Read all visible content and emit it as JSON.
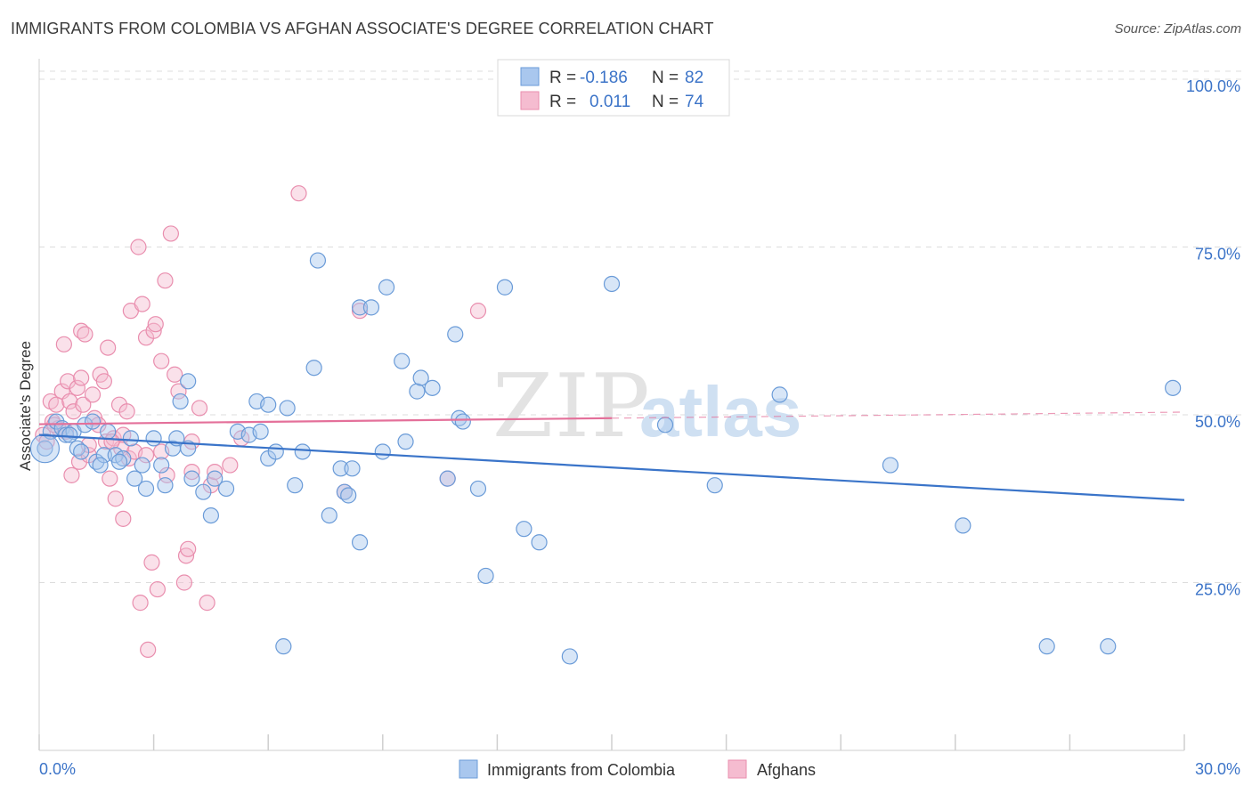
{
  "title": "IMMIGRANTS FROM COLOMBIA VS AFGHAN ASSOCIATE'S DEGREE CORRELATION CHART",
  "source": "Source: ZipAtlas.com",
  "watermark": {
    "zip": "ZIP",
    "atlas": "atlas"
  },
  "legend": {
    "rows": [
      {
        "r_label": "R =",
        "r_value": "-0.186",
        "n_label": "N =",
        "n_value": "82"
      },
      {
        "r_label": "R =",
        "r_value": "0.011",
        "n_label": "N =",
        "n_value": "74"
      }
    ]
  },
  "colors": {
    "blue_fill": "#a9c7ee",
    "blue_stroke": "#6a9bd8",
    "blue_line": "#3a74c9",
    "pink_fill": "#f5bcd0",
    "pink_stroke": "#e98eae",
    "pink_line": "#e4709a",
    "grid": "#dcdcdc",
    "tick_label": "#3c74c8"
  },
  "chart_data": {
    "type": "scatter",
    "title": "IMMIGRANTS FROM COLOMBIA VS AFGHAN ASSOCIATE'S DEGREE CORRELATION CHART",
    "xlabel": "",
    "ylabel": "Associate's Degree",
    "xlim": [
      0,
      30
    ],
    "ylim": [
      0,
      100
    ],
    "x_tick_labels": [
      "0.0%",
      "30.0%"
    ],
    "y_ticks": [
      25,
      50,
      75,
      100
    ],
    "y_tick_labels": [
      "25.0%",
      "50.0%",
      "75.0%",
      "100.0%"
    ],
    "grid": true,
    "legend_position": "bottom-center",
    "series": [
      {
        "name": "Immigrants from Colombia",
        "color": "#a9c7ee",
        "trend": {
          "x": [
            0,
            30
          ],
          "y": [
            47.0,
            37.3
          ]
        },
        "points": [
          [
            0.15,
            45.0
          ],
          [
            0.3,
            47.5
          ],
          [
            0.45,
            49.0
          ],
          [
            0.6,
            48.0
          ],
          [
            0.7,
            47.0
          ],
          [
            0.9,
            47.5
          ],
          [
            1.0,
            45.0
          ],
          [
            1.1,
            44.5
          ],
          [
            1.2,
            48.5
          ],
          [
            1.4,
            49.0
          ],
          [
            1.5,
            43.0
          ],
          [
            1.7,
            44.0
          ],
          [
            1.8,
            47.5
          ],
          [
            2.0,
            44.0
          ],
          [
            2.2,
            43.5
          ],
          [
            2.4,
            46.5
          ],
          [
            2.5,
            40.5
          ],
          [
            2.7,
            42.5
          ],
          [
            2.8,
            39.0
          ],
          [
            3.0,
            46.5
          ],
          [
            3.2,
            42.5
          ],
          [
            3.3,
            39.5
          ],
          [
            3.5,
            45.0
          ],
          [
            3.6,
            46.5
          ],
          [
            3.7,
            52.0
          ],
          [
            3.9,
            55.0
          ],
          [
            4.0,
            40.5
          ],
          [
            4.3,
            38.5
          ],
          [
            4.5,
            35.0
          ],
          [
            4.6,
            40.5
          ],
          [
            4.9,
            39.0
          ],
          [
            5.2,
            47.5
          ],
          [
            5.5,
            47.0
          ],
          [
            5.7,
            52.0
          ],
          [
            5.8,
            47.5
          ],
          [
            6.0,
            43.5
          ],
          [
            6.2,
            44.5
          ],
          [
            6.4,
            15.5
          ],
          [
            6.5,
            51.0
          ],
          [
            6.7,
            39.5
          ],
          [
            6.9,
            44.5
          ],
          [
            7.2,
            57.0
          ],
          [
            7.3,
            73.0
          ],
          [
            7.6,
            35.0
          ],
          [
            7.9,
            42.0
          ],
          [
            8.0,
            38.5
          ],
          [
            8.2,
            42.0
          ],
          [
            8.4,
            66.0
          ],
          [
            8.7,
            66.0
          ],
          [
            9.0,
            44.5
          ],
          [
            9.1,
            69.0
          ],
          [
            9.5,
            58.0
          ],
          [
            9.6,
            46.0
          ],
          [
            9.9,
            53.5
          ],
          [
            10.0,
            55.5
          ],
          [
            10.3,
            54.0
          ],
          [
            10.7,
            40.5
          ],
          [
            10.9,
            62.0
          ],
          [
            11.0,
            49.5
          ],
          [
            11.1,
            49.0
          ],
          [
            11.5,
            39.0
          ],
          [
            11.7,
            26.0
          ],
          [
            12.2,
            69.0
          ],
          [
            12.7,
            33.0
          ],
          [
            13.1,
            31.0
          ],
          [
            13.9,
            14.0
          ],
          [
            15.0,
            69.5
          ],
          [
            16.4,
            48.5
          ],
          [
            17.7,
            39.5
          ],
          [
            19.4,
            53.0
          ],
          [
            22.3,
            42.5
          ],
          [
            24.2,
            33.5
          ],
          [
            26.4,
            15.5
          ],
          [
            28.0,
            15.5
          ],
          [
            29.7,
            54.0
          ],
          [
            1.6,
            42.5
          ],
          [
            6.0,
            51.5
          ],
          [
            8.4,
            31.0
          ],
          [
            3.9,
            45.0
          ],
          [
            8.1,
            38.0
          ],
          [
            0.8,
            47.0
          ],
          [
            2.1,
            43.0
          ]
        ]
      },
      {
        "name": "Afghans",
        "color": "#f5bcd0",
        "trend": {
          "x": [
            0,
            15
          ],
          "y": [
            48.6,
            49.5
          ]
        },
        "trend_dashed": {
          "x": [
            15,
            30
          ],
          "y": [
            49.5,
            50.4
          ]
        },
        "points": [
          [
            0.1,
            47.0
          ],
          [
            0.2,
            46.0
          ],
          [
            0.3,
            52.0
          ],
          [
            0.35,
            49.0
          ],
          [
            0.45,
            51.5
          ],
          [
            0.5,
            48.0
          ],
          [
            0.6,
            53.5
          ],
          [
            0.65,
            60.5
          ],
          [
            0.75,
            55.0
          ],
          [
            0.8,
            52.0
          ],
          [
            0.85,
            41.0
          ],
          [
            0.9,
            50.5
          ],
          [
            1.0,
            54.0
          ],
          [
            1.05,
            43.0
          ],
          [
            1.1,
            55.5
          ],
          [
            1.15,
            51.5
          ],
          [
            1.1,
            62.5
          ],
          [
            1.2,
            62.0
          ],
          [
            1.3,
            44.0
          ],
          [
            1.4,
            53.0
          ],
          [
            1.45,
            49.5
          ],
          [
            1.55,
            48.5
          ],
          [
            1.6,
            56.0
          ],
          [
            1.7,
            55.0
          ],
          [
            1.75,
            46.0
          ],
          [
            1.8,
            60.0
          ],
          [
            1.85,
            40.5
          ],
          [
            1.95,
            46.5
          ],
          [
            2.0,
            37.5
          ],
          [
            2.1,
            51.5
          ],
          [
            2.15,
            45.0
          ],
          [
            2.2,
            34.5
          ],
          [
            2.3,
            50.5
          ],
          [
            2.35,
            43.5
          ],
          [
            2.4,
            65.5
          ],
          [
            2.5,
            44.5
          ],
          [
            2.6,
            75.0
          ],
          [
            2.65,
            22.0
          ],
          [
            2.7,
            66.5
          ],
          [
            2.8,
            61.5
          ],
          [
            2.85,
            15.0
          ],
          [
            2.95,
            28.0
          ],
          [
            3.0,
            62.5
          ],
          [
            3.05,
            63.5
          ],
          [
            3.1,
            24.0
          ],
          [
            3.2,
            58.0
          ],
          [
            3.3,
            70.0
          ],
          [
            3.35,
            41.0
          ],
          [
            3.45,
            77.0
          ],
          [
            3.55,
            56.0
          ],
          [
            3.65,
            53.5
          ],
          [
            3.8,
            25.0
          ],
          [
            3.85,
            29.0
          ],
          [
            3.9,
            30.0
          ],
          [
            4.0,
            41.5
          ],
          [
            4.2,
            51.0
          ],
          [
            4.4,
            22.0
          ],
          [
            4.5,
            39.5
          ],
          [
            4.6,
            41.5
          ],
          [
            5.0,
            42.5
          ],
          [
            5.3,
            46.5
          ],
          [
            6.8,
            83.0
          ],
          [
            8.0,
            38.5
          ],
          [
            8.4,
            65.5
          ],
          [
            10.7,
            40.5
          ],
          [
            11.5,
            65.5
          ],
          [
            3.2,
            44.5
          ],
          [
            2.2,
            47.0
          ],
          [
            1.3,
            45.5
          ],
          [
            0.7,
            47.5
          ],
          [
            0.4,
            48.5
          ],
          [
            1.9,
            46.0
          ],
          [
            2.8,
            44.0
          ],
          [
            4.0,
            46.0
          ]
        ]
      }
    ]
  },
  "bottom_legend": [
    "Immigrants from Colombia",
    "Afghans"
  ]
}
